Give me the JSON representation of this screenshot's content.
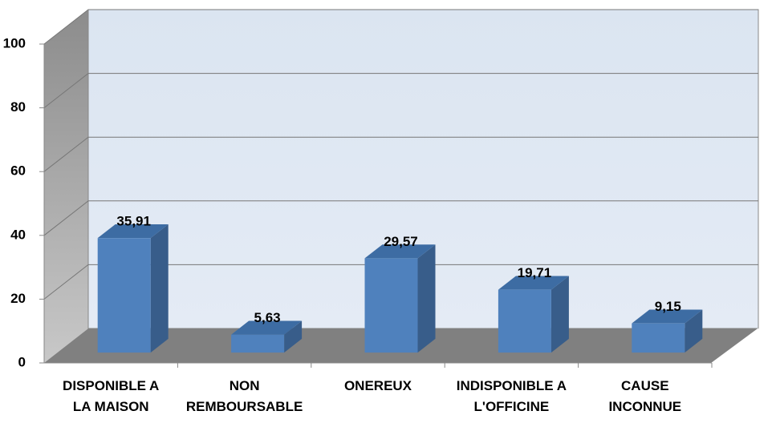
{
  "chart_data": {
    "type": "bar3d",
    "categories": [
      "DISPONIBLE A\nLA MAISON",
      "NON\nREMBOURSABLE",
      "ONEREUX",
      "INDISPONIBLE A\nL'OFFICINE",
      "CAUSE\nINCONNUE"
    ],
    "values": [
      35.91,
      5.63,
      29.57,
      19.71,
      9.15
    ],
    "value_labels": [
      "35,91",
      "5,63",
      "29,57",
      "19,71",
      "9,15"
    ],
    "color": "#4f81bd",
    "ylim": [
      0,
      100
    ],
    "yticks": [
      0,
      20,
      40,
      60,
      80,
      100
    ],
    "grid": true
  }
}
